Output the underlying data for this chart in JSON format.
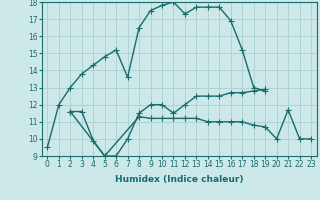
{
  "line1_x": [
    0,
    1,
    2,
    3,
    4,
    5,
    6,
    7,
    8,
    9,
    10,
    11,
    12,
    13,
    14,
    15,
    16,
    17,
    18,
    19
  ],
  "line1_y": [
    9.5,
    12.0,
    13.0,
    13.8,
    14.3,
    14.8,
    15.2,
    13.6,
    16.5,
    17.5,
    17.8,
    18.0,
    17.3,
    17.7,
    17.7,
    17.7,
    16.9,
    15.2,
    13.0,
    12.8
  ],
  "line2_x": [
    2,
    3,
    4,
    5,
    6,
    7,
    8,
    9,
    10,
    11,
    12,
    13,
    14,
    15,
    16,
    17,
    18,
    19
  ],
  "line2_y": [
    11.6,
    11.6,
    9.9,
    9.0,
    9.0,
    10.0,
    11.5,
    12.0,
    12.0,
    11.5,
    12.0,
    12.5,
    12.5,
    12.5,
    12.7,
    12.7,
    12.8,
    12.9
  ],
  "line3_x": [
    2,
    5,
    8,
    9,
    10,
    11,
    12,
    13,
    14,
    15,
    16,
    17,
    18,
    19,
    20,
    21,
    22,
    23
  ],
  "line3_y": [
    11.6,
    9.0,
    11.3,
    11.2,
    11.2,
    11.2,
    11.2,
    11.2,
    11.0,
    11.0,
    11.0,
    11.0,
    10.8,
    10.7,
    10.0,
    11.7,
    10.0,
    10.0
  ],
  "color": "#1a6b6b",
  "bg_color": "#cce8e8",
  "grid_color": "#aacfcf",
  "xlabel": "Humidex (Indice chaleur)",
  "ylim": [
    9,
    18
  ],
  "xlim": [
    -0.5,
    23.5
  ],
  "yticks": [
    9,
    10,
    11,
    12,
    13,
    14,
    15,
    16,
    17,
    18
  ],
  "xticks": [
    0,
    1,
    2,
    3,
    4,
    5,
    6,
    7,
    8,
    9,
    10,
    11,
    12,
    13,
    14,
    15,
    16,
    17,
    18,
    19,
    20,
    21,
    22,
    23
  ],
  "marker": "+",
  "linewidth": 1.0,
  "markersize": 4,
  "tick_fontsize": 5.5,
  "xlabel_fontsize": 6.5
}
